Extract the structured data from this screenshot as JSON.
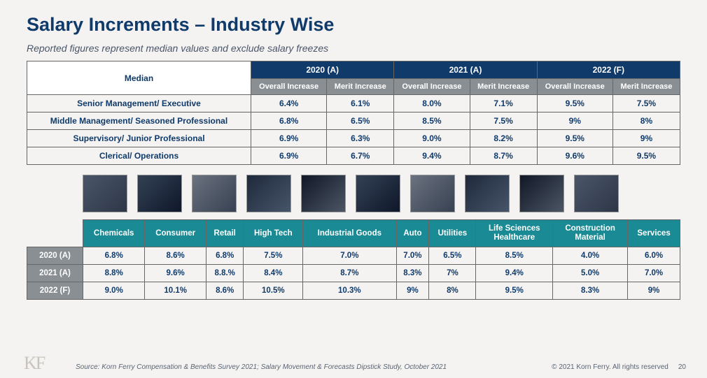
{
  "title": "Salary Increments – Industry Wise",
  "subtitle": "Reported figures represent median values and exclude salary freezes",
  "top_table": {
    "median_label": "Median",
    "year_headers": [
      "2020 (A)",
      "2021 (A)",
      "2022 (F)"
    ],
    "sub_headers": [
      "Overall Increase",
      "Merit Increase"
    ],
    "rows": [
      {
        "label": "Senior Management/ Executive",
        "vals": [
          "6.4%",
          "6.1%",
          "8.0%",
          "7.1%",
          "9.5%",
          "7.5%"
        ]
      },
      {
        "label": "Middle Management/ Seasoned Professional",
        "vals": [
          "6.8%",
          "6.5%",
          "8.5%",
          "7.5%",
          "9%",
          "8%"
        ]
      },
      {
        "label": "Supervisory/ Junior Professional",
        "vals": [
          "6.9%",
          "6.3%",
          "9.0%",
          "8.2%",
          "9.5%",
          "9%"
        ]
      },
      {
        "label": "Clerical/ Operations",
        "vals": [
          "6.9%",
          "6.7%",
          "9.4%",
          "8.7%",
          "9.6%",
          "9.5%"
        ]
      }
    ]
  },
  "images": [
    "chemicals-image",
    "consumer-image",
    "retail-image",
    "high-tech-image",
    "industrial-goods-image",
    "auto-image",
    "utilities-image",
    "life-sciences-image",
    "construction-image",
    "services-image"
  ],
  "bot_table": {
    "col_headers": [
      "Chemicals",
      "Consumer",
      "Retail",
      "High Tech",
      "Industrial Goods",
      "Auto",
      "Utilities",
      "Life Sciences & Healthcare",
      "Construction & Material",
      "Services"
    ],
    "rows": [
      {
        "yr": "2020 (A)",
        "vals": [
          "6.8%",
          "8.6%",
          "6.8%",
          "7.5%",
          "7.0%",
          "7.0%",
          "6.5%",
          "8.5%",
          "4.0%",
          "6.0%"
        ]
      },
      {
        "yr": "2021 (A)",
        "vals": [
          "8.8%",
          "9.6%",
          "8.8.%",
          "8.4%",
          "8.7%",
          "8.3%",
          "7%",
          "9.4%",
          "5.0%",
          "7.0%"
        ]
      },
      {
        "yr": "2022 (F)",
        "vals": [
          "9.0%",
          "10.1%",
          "8.6%",
          "10.5%",
          "10.3%",
          "9%",
          "8%",
          "9.5%",
          "8.3%",
          "9%"
        ]
      }
    ]
  },
  "footer": {
    "source": "Source: Korn Ferry Compensation & Benefits Survey 2021; Salary Movement & Forecasts Dipstick Study, October 2021",
    "copyright": "© 2021 Korn Ferry. All rights reserved",
    "page": "20"
  },
  "colors": {
    "navy": "#0f3a6a",
    "grey_header": "#8a8f94",
    "teal": "#1a8a94",
    "bg": "#f4f3f2"
  }
}
